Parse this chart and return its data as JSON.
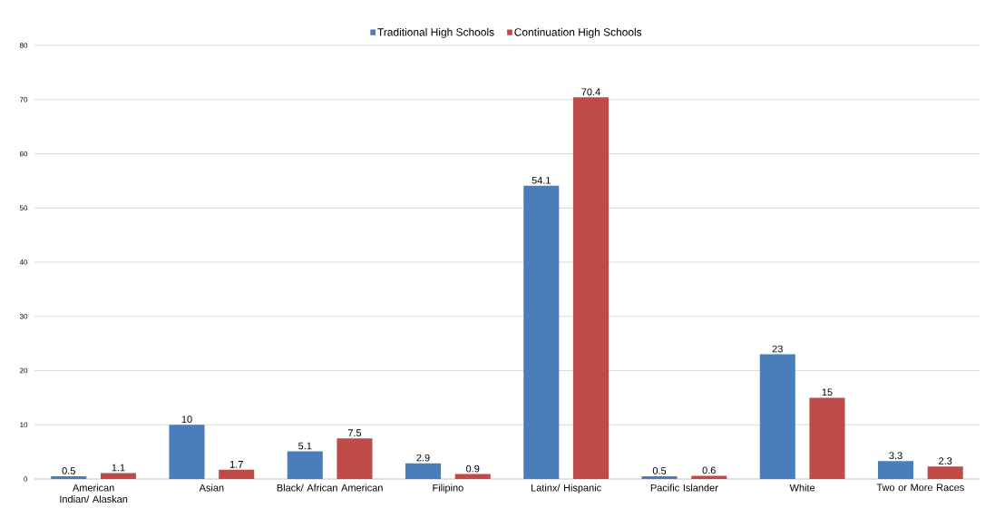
{
  "chart_data": {
    "type": "bar",
    "categories": [
      "American Indian/ Alaskan",
      "Asian",
      "Black/ African American",
      "Filipino",
      "Latinx/ Hispanic",
      "Pacific Islander",
      "White",
      "Two or More Races"
    ],
    "series": [
      {
        "name": "Traditional High Schools",
        "color": "#4a7ebb",
        "values": [
          0.5,
          10,
          5.1,
          2.9,
          54.1,
          0.5,
          23,
          3.3
        ]
      },
      {
        "name": "Continuation High Schools",
        "color": "#be4b48",
        "values": [
          1.1,
          1.7,
          7.5,
          0.9,
          70.4,
          0.6,
          15,
          2.3
        ]
      }
    ],
    "ylim": [
      0,
      80
    ],
    "yticks": [
      0,
      10,
      20,
      30,
      40,
      50,
      60,
      70,
      80
    ],
    "grid": "y",
    "legend": "top",
    "data_labels": true
  }
}
